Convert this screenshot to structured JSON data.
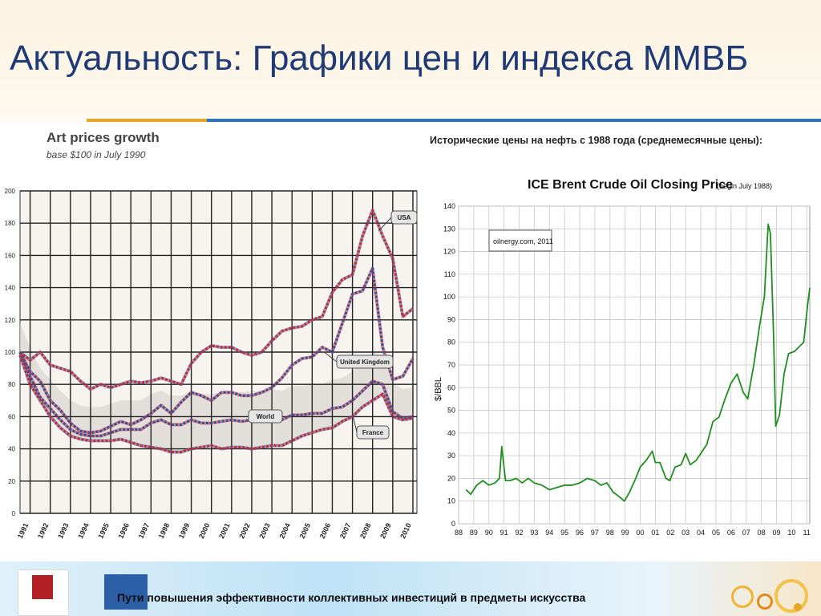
{
  "slide": {
    "title": "Актуальность: Графики цен и индекса ММВБ",
    "footer_text": "Пути повышения эффективности коллективных инвестиций в предметы искусства"
  },
  "colors": {
    "title": "#1f3a75",
    "usa": "#d6252b",
    "uk": "#2e55a3",
    "oil_line": "#1e8f1e",
    "accent_orange": "#e9a626",
    "accent_blue": "#2e74b8"
  },
  "chart_data": [
    {
      "type": "line",
      "title": "Art prices growth",
      "subtitle": "base $100 in July 1990",
      "xlabel": "",
      "ylabel": "",
      "x_ticks": [
        "1991",
        "1992",
        "1993",
        "1994",
        "1995",
        "1996",
        "1997",
        "1998",
        "1999",
        "2000",
        "2001",
        "2002",
        "2003",
        "2004",
        "2005",
        "2006",
        "2007",
        "2008",
        "2009",
        "2010"
      ],
      "y_ticks": [
        "200",
        "180",
        "160",
        "140",
        "120",
        "100",
        "80",
        "60",
        "40",
        "20",
        "0"
      ],
      "ylim": [
        0,
        200
      ],
      "xlim": [
        1990.5,
        2010.2
      ],
      "grid": true,
      "annotations": [
        "USA",
        "United Kingdom",
        "World",
        "France"
      ],
      "series": [
        {
          "name": "USA",
          "color": "#d6252b",
          "x": [
            1990.5,
            1991,
            1991.5,
            1992,
            1992.5,
            1993,
            1993.5,
            1994,
            1994.5,
            1995,
            1995.5,
            1996,
            1996.5,
            1997,
            1997.5,
            1998,
            1998.5,
            1999,
            1999.5,
            2000,
            2000.5,
            2001,
            2001.5,
            2002,
            2002.5,
            2003,
            2003.5,
            2004,
            2004.5,
            2005,
            2005.5,
            2006,
            2006.5,
            2007,
            2007.5,
            2008,
            2008.5,
            2009,
            2009.5,
            2010
          ],
          "y": [
            100,
            95,
            100,
            92,
            90,
            88,
            82,
            77,
            80,
            78,
            80,
            82,
            81,
            82,
            84,
            82,
            80,
            93,
            100,
            104,
            103,
            103,
            100,
            98,
            100,
            107,
            113,
            115,
            116,
            120,
            122,
            137,
            145,
            148,
            172,
            188,
            172,
            158,
            122,
            127
          ]
        },
        {
          "name": "United Kingdom",
          "color": "#2e55a3",
          "x": [
            1990.5,
            1991,
            1991.5,
            1992,
            1992.5,
            1993,
            1993.5,
            1994,
            1994.5,
            1995,
            1995.5,
            1996,
            1996.5,
            1997,
            1997.5,
            1998,
            1998.5,
            1999,
            1999.5,
            2000,
            2000.5,
            2001,
            2001.5,
            2002,
            2002.5,
            2003,
            2003.5,
            2004,
            2004.5,
            2005,
            2005.5,
            2006,
            2006.5,
            2007,
            2007.5,
            2008,
            2008.5,
            2009,
            2009.5,
            2010
          ],
          "y": [
            100,
            88,
            82,
            70,
            64,
            56,
            51,
            50,
            51,
            54,
            57,
            55,
            58,
            62,
            67,
            62,
            69,
            75,
            73,
            70,
            75,
            75,
            73,
            73,
            75,
            78,
            84,
            92,
            96,
            97,
            103,
            100,
            118,
            136,
            138,
            152,
            103,
            83,
            85,
            96
          ]
        },
        {
          "name": "World",
          "color": "#2e55a3",
          "x": [
            1990.5,
            1991,
            1991.5,
            1992,
            1992.5,
            1993,
            1993.5,
            1994,
            1994.5,
            1995,
            1995.5,
            1996,
            1996.5,
            1997,
            1997.5,
            1998,
            1998.5,
            1999,
            1999.5,
            2000,
            2000.5,
            2001,
            2001.5,
            2002,
            2002.5,
            2003,
            2003.5,
            2004,
            2004.5,
            2005,
            2005.5,
            2006,
            2006.5,
            2007,
            2007.5,
            2008,
            2008.5,
            2009,
            2009.5,
            2010
          ],
          "y": [
            100,
            85,
            72,
            65,
            58,
            52,
            49,
            48,
            48,
            50,
            52,
            52,
            52,
            56,
            58,
            55,
            55,
            58,
            56,
            56,
            57,
            58,
            57,
            58,
            58,
            59,
            58,
            61,
            61,
            62,
            62,
            65,
            66,
            70,
            76,
            82,
            80,
            63,
            59,
            60
          ]
        },
        {
          "name": "France",
          "color": "#d6252b",
          "x": [
            1990.5,
            1991,
            1991.5,
            1992,
            1992.5,
            1993,
            1993.5,
            1994,
            1994.5,
            1995,
            1995.5,
            1996,
            1996.5,
            1997,
            1997.5,
            1998,
            1998.5,
            1999,
            1999.5,
            2000,
            2000.5,
            2001,
            2001.5,
            2002,
            2002.5,
            2003,
            2003.5,
            2004,
            2004.5,
            2005,
            2005.5,
            2006,
            2006.5,
            2007,
            2007.5,
            2008,
            2008.5,
            2009,
            2009.5,
            2010
          ],
          "y": [
            98,
            80,
            70,
            60,
            53,
            48,
            46,
            45,
            45,
            45,
            46,
            44,
            42,
            41,
            40,
            38,
            38,
            40,
            41,
            42,
            40,
            41,
            41,
            40,
            41,
            42,
            42,
            45,
            48,
            50,
            52,
            53,
            57,
            60,
            66,
            70,
            74,
            60,
            58,
            59
          ]
        }
      ]
    },
    {
      "type": "line",
      "heading": "Исторические цены на нефть с 1988 года (среднемесячные цены):",
      "title": "ICE Brent Crude Oil Closing Price",
      "title_note": "(begin July 1988)",
      "source_note": "oilnergy.com, 2011",
      "ylabel": "$/BBL",
      "xlabel": "",
      "x_ticks": [
        "88",
        "89",
        "90",
        "91",
        "92",
        "93",
        "94",
        "95",
        "96",
        "97",
        "98",
        "99",
        "00",
        "01",
        "02",
        "03",
        "04",
        "05",
        "06",
        "07",
        "08",
        "09",
        "10",
        "11"
      ],
      "y_ticks": [
        "140",
        "130",
        "120",
        "110",
        "100",
        "90",
        "80",
        "70",
        "60",
        "50",
        "40",
        "30",
        "20",
        "10",
        "0"
      ],
      "ylim": [
        0,
        140
      ],
      "xlim": [
        1988,
        2011.2
      ],
      "grid": true,
      "series": [
        {
          "name": "Brent",
          "color": "#1e8f1e",
          "x": [
            1988.5,
            1988.8,
            1989.2,
            1989.6,
            1990.0,
            1990.4,
            1990.7,
            1990.85,
            1991.1,
            1991.4,
            1991.8,
            1992.2,
            1992.6,
            1993.0,
            1993.5,
            1994.0,
            1994.5,
            1995.0,
            1995.5,
            1996.0,
            1996.5,
            1997.0,
            1997.4,
            1997.8,
            1998.2,
            1998.6,
            1998.95,
            1999.3,
            1999.7,
            2000.0,
            2000.4,
            2000.8,
            2001.0,
            2001.3,
            2001.7,
            2001.95,
            2002.3,
            2002.7,
            2003.0,
            2003.3,
            2003.7,
            2004.0,
            2004.4,
            2004.8,
            2005.2,
            2005.6,
            2006.0,
            2006.4,
            2006.8,
            2007.1,
            2007.5,
            2007.9,
            2008.2,
            2008.45,
            2008.6,
            2008.8,
            2008.95,
            2009.2,
            2009.5,
            2009.8,
            2010.2,
            2010.5,
            2010.8,
            2011.05,
            2011.2
          ],
          "y": [
            15,
            13,
            17,
            19,
            17,
            18,
            20,
            34,
            19,
            19,
            20,
            18,
            20,
            18,
            17,
            15,
            16,
            17,
            17,
            18,
            20,
            19,
            17,
            18,
            14,
            12,
            10,
            14,
            20,
            25,
            28,
            32,
            27,
            27,
            20,
            19,
            25,
            26,
            31,
            26,
            28,
            31,
            35,
            45,
            47,
            55,
            62,
            66,
            58,
            55,
            70,
            88,
            100,
            132,
            128,
            85,
            43,
            48,
            66,
            75,
            76,
            78,
            80,
            96,
            104
          ]
        }
      ]
    }
  ]
}
